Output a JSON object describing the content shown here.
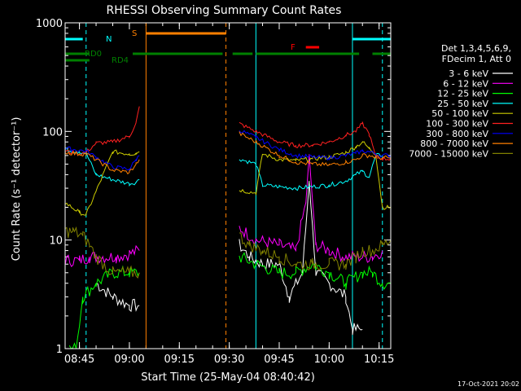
{
  "chart_data": {
    "type": "line",
    "title": "RHESSI Observing Summary Count Rates",
    "xlabel": "Start Time (25-May-04 08:40:42)",
    "ylabel": "Count Rate (s⁻¹ detector⁻¹)",
    "y_scale": "log",
    "ylim": [
      1,
      1000
    ],
    "xlim": [
      "08:40:42",
      "10:18:30"
    ],
    "x_ticks": [
      "08:45",
      "09:00",
      "09:15",
      "09:30",
      "09:45",
      "10:00",
      "10:15"
    ],
    "y_ticks": [
      "1",
      "10",
      "100",
      "1000"
    ],
    "background": "#000000",
    "axis_color": "#ffffff",
    "legend_position": "right",
    "legend_header": [
      "Det 1,3,4,5,6,9,",
      "FDecim 1, Att 0"
    ],
    "timestamp": "17-Oct-2021 20:02",
    "series": [
      {
        "name": "3 - 6 keV",
        "color": "#ffffff",
        "x": [
          "08:40:42",
          "08:45",
          "08:50",
          "08:55",
          "09:00",
          "09:03",
          "09:05",
          "09:30",
          "09:33",
          "09:36",
          "09:40",
          "09:45",
          "09:48",
          "09:52",
          "09:54",
          "09:56",
          "10:00",
          "10:05",
          "10:07",
          "10:10",
          "10:12"
        ],
        "values": [
          null,
          null,
          4,
          3,
          2.5,
          2.5,
          null,
          null,
          9,
          7,
          6,
          6,
          3,
          5,
          35,
          5,
          4,
          3,
          1.5,
          1.5,
          null
        ]
      },
      {
        "name": "6 - 12 keV",
        "color": "#ff00ff",
        "x": [
          "08:40:42",
          "08:45",
          "08:48",
          "08:52",
          "08:56",
          "09:00",
          "09:03",
          "09:05",
          "09:30",
          "09:33",
          "09:38",
          "09:45",
          "09:50",
          "09:53",
          "09:54",
          "09:56",
          "10:00",
          "10:05",
          "10:08",
          "10:13",
          "10:16",
          "10:18:30"
        ],
        "values": [
          6.5,
          6.5,
          7,
          7,
          7,
          7.5,
          8,
          null,
          null,
          13,
          10,
          9,
          8,
          22,
          60,
          9,
          8,
          7,
          7,
          7,
          8,
          null
        ]
      },
      {
        "name": "12 - 25 keV",
        "color": "#00ff00",
        "x": [
          "08:40:42",
          "08:42",
          "08:44",
          "08:46",
          "08:50",
          "08:55",
          "09:00",
          "09:03",
          "09:05",
          "09:30",
          "09:33",
          "09:38",
          "09:45",
          "09:50",
          "09:55",
          "10:00",
          "10:05",
          "10:10",
          "10:13",
          "10:16",
          "10:18:30"
        ],
        "values": [
          null,
          1,
          1,
          3,
          4,
          5,
          5,
          5,
          null,
          null,
          7,
          6,
          5,
          5,
          6,
          5,
          4,
          5,
          5,
          4,
          4
        ]
      },
      {
        "name": "25 - 50 keV",
        "color": "#00ffff",
        "x": [
          "08:40:42",
          "08:45",
          "08:47",
          "08:50",
          "08:55",
          "09:00",
          "09:02",
          "09:03",
          "09:30",
          "09:33",
          "09:38",
          "09:40",
          "09:45",
          "09:50",
          "09:55",
          "10:00",
          "10:05",
          "10:08",
          "10:10",
          "10:12",
          "10:14",
          "10:16"
        ],
        "values": [
          68,
          65,
          63,
          40,
          36,
          33,
          34,
          36,
          null,
          56,
          50,
          32,
          31,
          30,
          31,
          32,
          35,
          40,
          43,
          38,
          60,
          60
        ]
      },
      {
        "name": "50 - 100 keV",
        "color": "#cccc00",
        "x": [
          "08:40:42",
          "08:45",
          "08:47",
          "08:50",
          "08:55",
          "09:00",
          "09:02",
          "09:03",
          "09:30",
          "09:33",
          "09:38",
          "09:40",
          "09:45",
          "09:50",
          "09:55",
          "10:00",
          "10:05",
          "10:08",
          "10:10",
          "10:12",
          "10:14",
          "10:16",
          "10:18:30"
        ],
        "values": [
          22,
          18,
          17,
          28,
          65,
          62,
          63,
          65,
          null,
          29,
          27,
          62,
          55,
          54,
          56,
          58,
          64,
          72,
          80,
          70,
          62,
          20,
          20
        ]
      },
      {
        "name": "100 - 300 keV",
        "color": "#ff2020",
        "x": [
          "08:40:42",
          "08:45",
          "08:47",
          "08:50",
          "08:55",
          "09:00",
          "09:02",
          "09:03",
          "09:30",
          "09:33",
          "09:38",
          "09:45",
          "09:50",
          "09:55",
          "10:00",
          "10:05",
          "10:08",
          "10:10",
          "10:12",
          "10:14",
          "10:16",
          "10:18:30"
        ],
        "values": [
          66,
          62,
          64,
          78,
          80,
          90,
          120,
          170,
          null,
          118,
          100,
          80,
          74,
          75,
          80,
          92,
          100,
          118,
          95,
          58,
          56,
          56
        ]
      },
      {
        "name": "300 - 800 keV",
        "color": "#0000ff",
        "x": [
          "08:40:42",
          "08:45",
          "08:47",
          "08:50",
          "08:55",
          "09:00",
          "09:02",
          "09:03",
          "09:30",
          "09:33",
          "09:38",
          "09:45",
          "09:50",
          "09:55",
          "10:00",
          "10:05",
          "10:08",
          "10:10",
          "10:12",
          "10:14",
          "10:16",
          "10:18:30"
        ],
        "values": [
          70,
          67,
          66,
          58,
          47,
          45,
          55,
          60,
          null,
          103,
          88,
          68,
          60,
          58,
          57,
          60,
          63,
          66,
          65,
          62,
          60,
          60
        ]
      },
      {
        "name": "800 - 7000 keV",
        "color": "#ff8000",
        "x": [
          "08:40:42",
          "08:45",
          "08:47",
          "08:50",
          "08:55",
          "09:00",
          "09:02",
          "09:03",
          "09:30",
          "09:33",
          "09:38",
          "09:45",
          "09:50",
          "09:55",
          "10:00",
          "10:05",
          "10:08",
          "10:10",
          "10:12",
          "10:14",
          "10:16",
          "10:18:30"
        ],
        "values": [
          64,
          62,
          62,
          55,
          44,
          42,
          50,
          55,
          null,
          96,
          80,
          60,
          52,
          50,
          49,
          52,
          55,
          60,
          60,
          58,
          57,
          57
        ]
      },
      {
        "name": "7000 - 15000 keV",
        "color": "#808000",
        "x": [
          "08:40:42",
          "08:43",
          "08:46",
          "08:48",
          "08:50",
          "08:55",
          "09:00",
          "09:03",
          "09:05",
          "09:30",
          "09:33",
          "09:36",
          "09:40",
          "09:45",
          "09:50",
          "09:55",
          "10:00",
          "10:05",
          "10:08",
          "10:10",
          "10:13",
          "10:16",
          "10:18:30"
        ],
        "values": [
          12,
          12,
          11,
          9,
          7,
          5,
          5,
          5,
          null,
          null,
          11,
          9,
          8,
          7,
          6,
          6,
          6,
          6,
          7,
          8,
          8,
          9,
          10
        ]
      }
    ],
    "state_bars": [
      {
        "label": "N",
        "color": "#00ffff",
        "segments": [
          [
            "08:40:42",
            "08:46"
          ],
          [
            "10:07",
            "10:18:30"
          ]
        ]
      },
      {
        "label": "S",
        "color": "#ff8000",
        "segments": [
          [
            "09:05",
            "09:29"
          ]
        ]
      },
      {
        "label": "F",
        "color": "#ff0000",
        "segments": [
          [
            "09:53",
            "09:57"
          ]
        ]
      },
      {
        "label": "RD0",
        "color": "#008000",
        "segments": [
          [
            "08:40:42",
            "08:48"
          ],
          [
            "09:01",
            "09:28"
          ],
          [
            "09:31",
            "09:37"
          ],
          [
            "09:38",
            "10:09"
          ],
          [
            "10:13",
            "10:18:30"
          ]
        ]
      },
      {
        "label": "RD4",
        "color": "#008000",
        "segments": [
          [
            "08:40:42",
            "08:48"
          ]
        ]
      }
    ],
    "vertical_markers": [
      {
        "color": "#00ffff",
        "style": "dashed",
        "x": "08:47"
      },
      {
        "color": "#ff8000",
        "style": "solid",
        "x": "09:05"
      },
      {
        "color": "#ff8000",
        "style": "dashed",
        "x": "09:29"
      },
      {
        "color": "#00ffff",
        "style": "solid",
        "x": "09:38"
      },
      {
        "color": "#00ffff",
        "style": "solid",
        "x": "10:07"
      },
      {
        "color": "#00ffff",
        "style": "dashed",
        "x": "10:16"
      }
    ]
  }
}
